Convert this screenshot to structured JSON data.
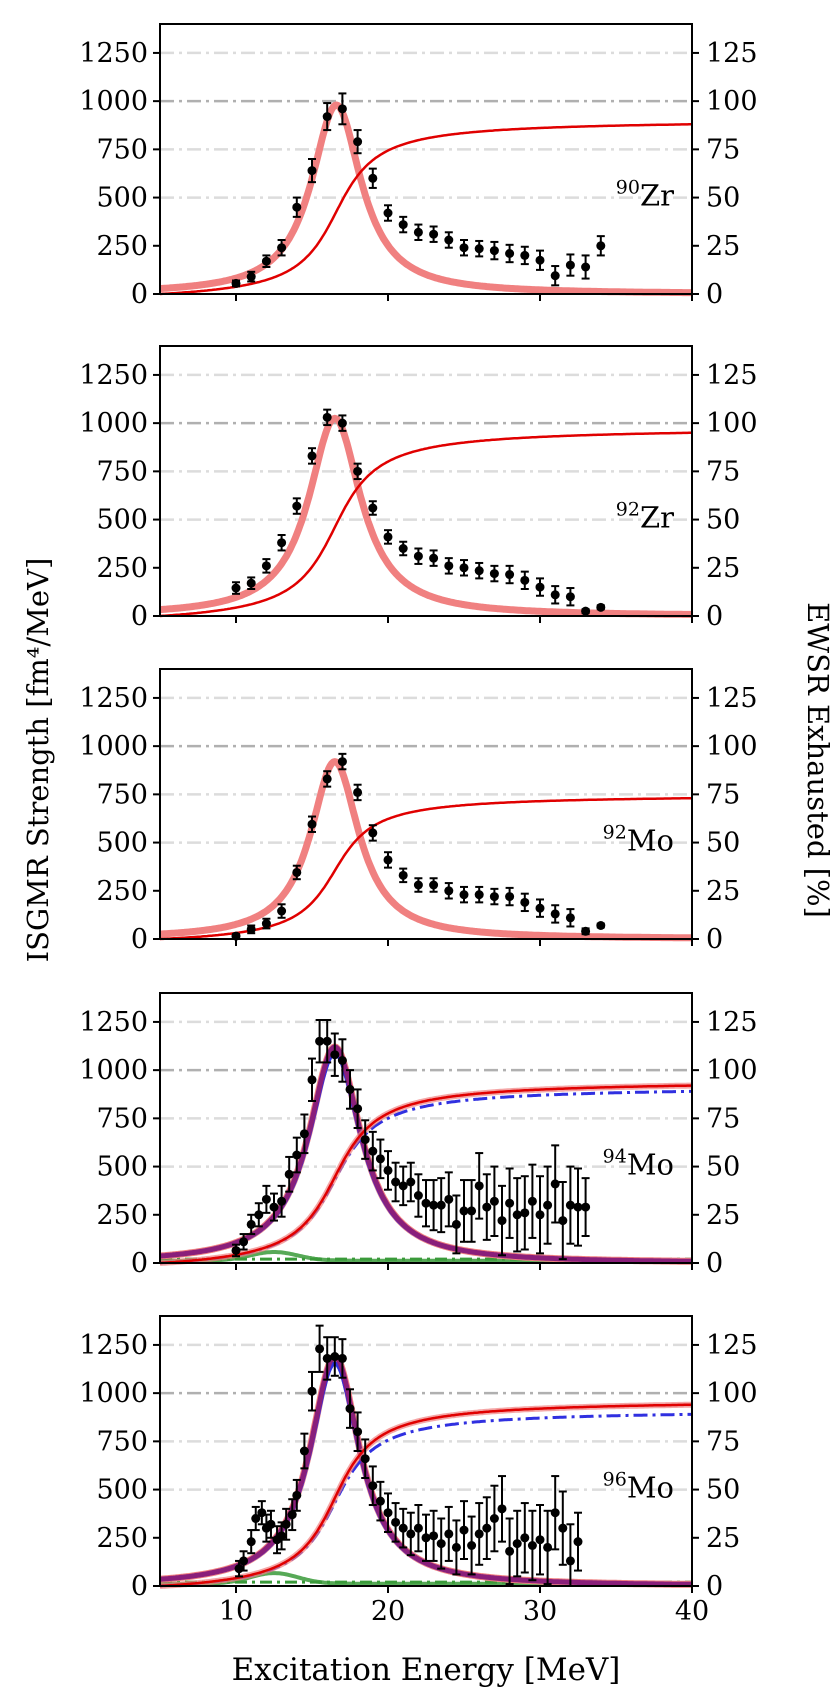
{
  "chart_data": {
    "type": "line",
    "x_label": "Excitation Energy [MeV]",
    "y_label_left": "ISGMR Strength [fm⁴/MeV]",
    "y_label_right": "EWSR Exhausted [%]",
    "xlim": [
      5,
      40
    ],
    "ylim_left": [
      0,
      1400
    ],
    "ylim_right": [
      0,
      140
    ],
    "x_ticks": [
      10,
      20,
      30,
      40
    ],
    "y_ticks_left": [
      0,
      250,
      500,
      750,
      1000,
      1250
    ],
    "y_ticks_right": [
      0,
      25,
      50,
      75,
      100,
      125
    ],
    "reference_lines_percent": [
      50,
      75,
      100,
      125
    ],
    "colors": {
      "fit_strength": "#f08080",
      "ewsr_curve": "#e00000",
      "data_points": "#000000",
      "alt_fit": "#3030e0",
      "combined_fit": "#8a1f7a",
      "background_component": "#3a9a3a",
      "reference_dark": "#b0b0b0",
      "reference_light": "#dcdcdc"
    },
    "panels": [
      {
        "isotope_mass": "90",
        "isotope_symbol": "Zr",
        "lorentz": {
          "E0": 16.6,
          "gamma": 4.0,
          "peak": 980
        },
        "ewsr_final_percent": 88,
        "points": [
          {
            "x": 10,
            "y": 55,
            "err": 15
          },
          {
            "x": 11,
            "y": 90,
            "err": 25
          },
          {
            "x": 12,
            "y": 170,
            "err": 30
          },
          {
            "x": 13,
            "y": 240,
            "err": 40
          },
          {
            "x": 14,
            "y": 450,
            "err": 50
          },
          {
            "x": 15,
            "y": 640,
            "err": 60
          },
          {
            "x": 16,
            "y": 920,
            "err": 70
          },
          {
            "x": 17,
            "y": 960,
            "err": 80
          },
          {
            "x": 18,
            "y": 790,
            "err": 60
          },
          {
            "x": 19,
            "y": 600,
            "err": 50
          },
          {
            "x": 20,
            "y": 420,
            "err": 40
          },
          {
            "x": 21,
            "y": 360,
            "err": 40
          },
          {
            "x": 22,
            "y": 320,
            "err": 40
          },
          {
            "x": 23,
            "y": 310,
            "err": 40
          },
          {
            "x": 24,
            "y": 280,
            "err": 40
          },
          {
            "x": 25,
            "y": 240,
            "err": 40
          },
          {
            "x": 26,
            "y": 235,
            "err": 40
          },
          {
            "x": 27,
            "y": 225,
            "err": 45
          },
          {
            "x": 28,
            "y": 210,
            "err": 45
          },
          {
            "x": 29,
            "y": 200,
            "err": 45
          },
          {
            "x": 30,
            "y": 175,
            "err": 50
          },
          {
            "x": 31,
            "y": 95,
            "err": 50
          },
          {
            "x": 32,
            "y": 150,
            "err": 55
          },
          {
            "x": 33,
            "y": 140,
            "err": 60
          },
          {
            "x": 34,
            "y": 250,
            "err": 50
          }
        ]
      },
      {
        "isotope_mass": "92",
        "isotope_symbol": "Zr",
        "lorentz": {
          "E0": 16.5,
          "gamma": 4.2,
          "peak": 1025
        },
        "ewsr_final_percent": 95,
        "points": [
          {
            "x": 10,
            "y": 145,
            "err": 30
          },
          {
            "x": 11,
            "y": 170,
            "err": 30
          },
          {
            "x": 12,
            "y": 260,
            "err": 35
          },
          {
            "x": 13,
            "y": 380,
            "err": 40
          },
          {
            "x": 14,
            "y": 570,
            "err": 40
          },
          {
            "x": 15,
            "y": 830,
            "err": 40
          },
          {
            "x": 16,
            "y": 1030,
            "err": 40
          },
          {
            "x": 17,
            "y": 1000,
            "err": 40
          },
          {
            "x": 18,
            "y": 750,
            "err": 40
          },
          {
            "x": 19,
            "y": 560,
            "err": 35
          },
          {
            "x": 20,
            "y": 410,
            "err": 35
          },
          {
            "x": 21,
            "y": 350,
            "err": 35
          },
          {
            "x": 22,
            "y": 310,
            "err": 40
          },
          {
            "x": 23,
            "y": 300,
            "err": 40
          },
          {
            "x": 24,
            "y": 260,
            "err": 40
          },
          {
            "x": 25,
            "y": 250,
            "err": 40
          },
          {
            "x": 26,
            "y": 235,
            "err": 40
          },
          {
            "x": 27,
            "y": 220,
            "err": 40
          },
          {
            "x": 28,
            "y": 215,
            "err": 45
          },
          {
            "x": 29,
            "y": 185,
            "err": 45
          },
          {
            "x": 30,
            "y": 150,
            "err": 45
          },
          {
            "x": 31,
            "y": 110,
            "err": 45
          },
          {
            "x": 32,
            "y": 100,
            "err": 45
          },
          {
            "x": 33,
            "y": 25,
            "err": 10
          },
          {
            "x": 34,
            "y": 45,
            "err": 10
          }
        ]
      },
      {
        "isotope_mass": "92",
        "isotope_symbol": "Mo",
        "lorentz": {
          "E0": 16.5,
          "gamma": 3.9,
          "peak": 920
        },
        "ewsr_final_percent": 73,
        "points": [
          {
            "x": 10,
            "y": 15,
            "err": 10
          },
          {
            "x": 11,
            "y": 50,
            "err": 20
          },
          {
            "x": 12,
            "y": 80,
            "err": 25
          },
          {
            "x": 13,
            "y": 145,
            "err": 35
          },
          {
            "x": 14,
            "y": 345,
            "err": 35
          },
          {
            "x": 15,
            "y": 595,
            "err": 40
          },
          {
            "x": 16,
            "y": 830,
            "err": 40
          },
          {
            "x": 17,
            "y": 920,
            "err": 40
          },
          {
            "x": 18,
            "y": 760,
            "err": 40
          },
          {
            "x": 19,
            "y": 550,
            "err": 40
          },
          {
            "x": 20,
            "y": 410,
            "err": 40
          },
          {
            "x": 21,
            "y": 330,
            "err": 35
          },
          {
            "x": 22,
            "y": 280,
            "err": 35
          },
          {
            "x": 23,
            "y": 280,
            "err": 35
          },
          {
            "x": 24,
            "y": 250,
            "err": 40
          },
          {
            "x": 25,
            "y": 230,
            "err": 40
          },
          {
            "x": 26,
            "y": 230,
            "err": 40
          },
          {
            "x": 27,
            "y": 220,
            "err": 40
          },
          {
            "x": 28,
            "y": 220,
            "err": 45
          },
          {
            "x": 29,
            "y": 190,
            "err": 45
          },
          {
            "x": 30,
            "y": 160,
            "err": 45
          },
          {
            "x": 31,
            "y": 130,
            "err": 45
          },
          {
            "x": 32,
            "y": 110,
            "err": 45
          },
          {
            "x": 33,
            "y": 40,
            "err": 15
          },
          {
            "x": 34,
            "y": 70,
            "err": 10
          }
        ]
      },
      {
        "isotope_mass": "94",
        "isotope_symbol": "Mo",
        "lorentz": {
          "E0": 16.5,
          "gamma": 4.2,
          "peak": 1120
        },
        "ewsr_final_percent": 92,
        "ewsr_alt_final_percent": 89,
        "background_peak": 45,
        "points": [
          {
            "x": 10,
            "y": 65,
            "err": 30
          },
          {
            "x": 10.5,
            "y": 110,
            "err": 40
          },
          {
            "x": 11,
            "y": 200,
            "err": 50
          },
          {
            "x": 11.5,
            "y": 250,
            "err": 60
          },
          {
            "x": 12,
            "y": 330,
            "err": 70
          },
          {
            "x": 12.5,
            "y": 290,
            "err": 70
          },
          {
            "x": 13,
            "y": 320,
            "err": 80
          },
          {
            "x": 13.5,
            "y": 460,
            "err": 90
          },
          {
            "x": 14,
            "y": 560,
            "err": 90
          },
          {
            "x": 14.5,
            "y": 670,
            "err": 100
          },
          {
            "x": 15,
            "y": 950,
            "err": 110
          },
          {
            "x": 15.5,
            "y": 1150,
            "err": 110
          },
          {
            "x": 16,
            "y": 1150,
            "err": 110
          },
          {
            "x": 16.5,
            "y": 1080,
            "err": 110
          },
          {
            "x": 17,
            "y": 1050,
            "err": 110
          },
          {
            "x": 17.5,
            "y": 900,
            "err": 100
          },
          {
            "x": 18,
            "y": 800,
            "err": 100
          },
          {
            "x": 18.5,
            "y": 640,
            "err": 100
          },
          {
            "x": 19,
            "y": 580,
            "err": 100
          },
          {
            "x": 19.5,
            "y": 540,
            "err": 100
          },
          {
            "x": 20,
            "y": 480,
            "err": 100
          },
          {
            "x": 20.5,
            "y": 420,
            "err": 100
          },
          {
            "x": 21,
            "y": 400,
            "err": 100
          },
          {
            "x": 21.5,
            "y": 420,
            "err": 100
          },
          {
            "x": 22,
            "y": 350,
            "err": 110
          },
          {
            "x": 22.5,
            "y": 310,
            "err": 120
          },
          {
            "x": 23,
            "y": 300,
            "err": 130
          },
          {
            "x": 23.5,
            "y": 300,
            "err": 140
          },
          {
            "x": 24,
            "y": 330,
            "err": 140
          },
          {
            "x": 24.5,
            "y": 200,
            "err": 150
          },
          {
            "x": 25,
            "y": 270,
            "err": 160
          },
          {
            "x": 25.5,
            "y": 270,
            "err": 160
          },
          {
            "x": 26,
            "y": 400,
            "err": 170
          },
          {
            "x": 26.5,
            "y": 290,
            "err": 170
          },
          {
            "x": 27,
            "y": 320,
            "err": 180
          },
          {
            "x": 27.5,
            "y": 220,
            "err": 180
          },
          {
            "x": 28,
            "y": 310,
            "err": 180
          },
          {
            "x": 28.5,
            "y": 250,
            "err": 190
          },
          {
            "x": 29,
            "y": 260,
            "err": 190
          },
          {
            "x": 29.5,
            "y": 320,
            "err": 190
          },
          {
            "x": 30,
            "y": 250,
            "err": 200
          },
          {
            "x": 30.5,
            "y": 300,
            "err": 200
          },
          {
            "x": 31,
            "y": 410,
            "err": 200
          },
          {
            "x": 31.5,
            "y": 220,
            "err": 200
          },
          {
            "x": 32,
            "y": 300,
            "err": 200
          },
          {
            "x": 32.5,
            "y": 290,
            "err": 200
          },
          {
            "x": 33,
            "y": 290,
            "err": 150
          }
        ]
      },
      {
        "isotope_mass": "96",
        "isotope_symbol": "Mo",
        "lorentz": {
          "E0": 16.5,
          "gamma": 4.0,
          "peak": 1190
        },
        "ewsr_final_percent": 94,
        "ewsr_alt_final_percent": 89,
        "background_peak": 55,
        "points": [
          {
            "x": 10.2,
            "y": 90,
            "err": 40
          },
          {
            "x": 10.5,
            "y": 130,
            "err": 50
          },
          {
            "x": 11,
            "y": 230,
            "err": 60
          },
          {
            "x": 11.3,
            "y": 350,
            "err": 60
          },
          {
            "x": 11.7,
            "y": 380,
            "err": 60
          },
          {
            "x": 12,
            "y": 300,
            "err": 70
          },
          {
            "x": 12.3,
            "y": 320,
            "err": 70
          },
          {
            "x": 12.7,
            "y": 240,
            "err": 70
          },
          {
            "x": 13,
            "y": 260,
            "err": 70
          },
          {
            "x": 13.3,
            "y": 320,
            "err": 80
          },
          {
            "x": 13.7,
            "y": 370,
            "err": 80
          },
          {
            "x": 14,
            "y": 470,
            "err": 80
          },
          {
            "x": 14.5,
            "y": 700,
            "err": 90
          },
          {
            "x": 15,
            "y": 1010,
            "err": 100
          },
          {
            "x": 15.5,
            "y": 1230,
            "err": 120
          },
          {
            "x": 16,
            "y": 1180,
            "err": 110
          },
          {
            "x": 16.5,
            "y": 1190,
            "err": 100
          },
          {
            "x": 17,
            "y": 1180,
            "err": 100
          },
          {
            "x": 17.5,
            "y": 920,
            "err": 100
          },
          {
            "x": 18,
            "y": 800,
            "err": 100
          },
          {
            "x": 18.5,
            "y": 660,
            "err": 100
          },
          {
            "x": 19,
            "y": 520,
            "err": 100
          },
          {
            "x": 19.5,
            "y": 440,
            "err": 100
          },
          {
            "x": 20,
            "y": 380,
            "err": 100
          },
          {
            "x": 20.5,
            "y": 330,
            "err": 100
          },
          {
            "x": 21,
            "y": 300,
            "err": 100
          },
          {
            "x": 21.5,
            "y": 270,
            "err": 110
          },
          {
            "x": 22,
            "y": 300,
            "err": 120
          },
          {
            "x": 22.5,
            "y": 250,
            "err": 120
          },
          {
            "x": 23,
            "y": 260,
            "err": 130
          },
          {
            "x": 23.5,
            "y": 220,
            "err": 130
          },
          {
            "x": 24,
            "y": 270,
            "err": 140
          },
          {
            "x": 24.5,
            "y": 200,
            "err": 140
          },
          {
            "x": 25,
            "y": 290,
            "err": 150
          },
          {
            "x": 25.5,
            "y": 210,
            "err": 150
          },
          {
            "x": 26,
            "y": 270,
            "err": 160
          },
          {
            "x": 26.5,
            "y": 300,
            "err": 160
          },
          {
            "x": 27,
            "y": 350,
            "err": 170
          },
          {
            "x": 27.5,
            "y": 400,
            "err": 170
          },
          {
            "x": 28,
            "y": 180,
            "err": 170
          },
          {
            "x": 28.5,
            "y": 220,
            "err": 170
          },
          {
            "x": 29,
            "y": 250,
            "err": 180
          },
          {
            "x": 29.5,
            "y": 210,
            "err": 180
          },
          {
            "x": 30,
            "y": 240,
            "err": 180
          },
          {
            "x": 30.5,
            "y": 200,
            "err": 190
          },
          {
            "x": 31,
            "y": 380,
            "err": 190
          },
          {
            "x": 31.5,
            "y": 300,
            "err": 190
          },
          {
            "x": 32,
            "y": 130,
            "err": 190
          },
          {
            "x": 32.5,
            "y": 230,
            "err": 150
          }
        ]
      }
    ]
  }
}
